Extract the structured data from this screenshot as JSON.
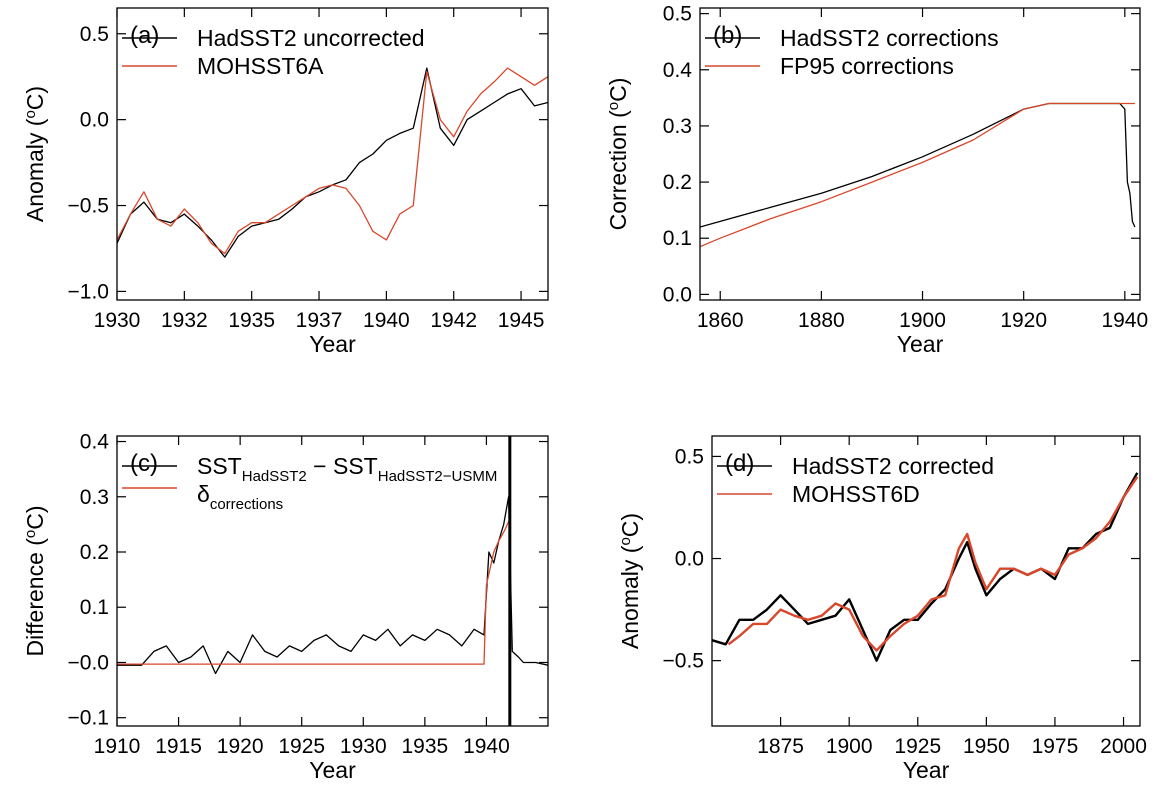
{
  "colors": {
    "black": "#000000",
    "red": "#d9472b",
    "grey": "#8a8a8a"
  },
  "chart_data": [
    {
      "id": "a",
      "type": "line",
      "panel_label": "(a)",
      "xlabel": "Year",
      "ylabel": "Anomaly (",
      "ylabel_sup": "o",
      "ylabel_tail": "C)",
      "xlim": [
        1930,
        1946
      ],
      "ylim": [
        -1.05,
        0.65
      ],
      "xticks": [
        1930,
        1932.5,
        1935,
        1937.5,
        1940,
        1942.5,
        1945
      ],
      "xticklabels": [
        "1930",
        "1932",
        "1935",
        "1937",
        "1940",
        "1942",
        "1945"
      ],
      "yticks": [
        -1.0,
        -0.5,
        0.0,
        0.5
      ],
      "yticklabels": [
        "−1.0",
        "−0.5",
        "0.0",
        "0.5"
      ],
      "legend": [
        "HadSST2 uncorrected",
        "MOHSST6A"
      ],
      "series": [
        {
          "name": "HadSST2 uncorrected",
          "color": "black",
          "x": [
            1930,
            1930.5,
            1931,
            1931.5,
            1932,
            1932.5,
            1933,
            1933.5,
            1934,
            1934.5,
            1935,
            1935.5,
            1936,
            1936.5,
            1937,
            1937.5,
            1938,
            1938.5,
            1939,
            1939.5,
            1940,
            1940.5,
            1941,
            1941.5,
            1942,
            1942.5,
            1943,
            1943.5,
            1944,
            1944.5,
            1945,
            1945.5,
            1946
          ],
          "y": [
            -0.72,
            -0.55,
            -0.48,
            -0.58,
            -0.6,
            -0.55,
            -0.62,
            -0.7,
            -0.8,
            -0.68,
            -0.62,
            -0.6,
            -0.58,
            -0.52,
            -0.45,
            -0.42,
            -0.38,
            -0.35,
            -0.25,
            -0.2,
            -0.12,
            -0.08,
            -0.05,
            0.3,
            -0.05,
            -0.15,
            0.0,
            0.05,
            0.1,
            0.15,
            0.18,
            0.08,
            0.1
          ]
        },
        {
          "name": "MOHSST6A",
          "color": "red",
          "x": [
            1930,
            1930.5,
            1931,
            1931.5,
            1932,
            1932.5,
            1933,
            1933.5,
            1934,
            1934.5,
            1935,
            1935.5,
            1936,
            1936.5,
            1937,
            1937.5,
            1938,
            1938.5,
            1939,
            1939.5,
            1940,
            1940.5,
            1941,
            1941.5,
            1942,
            1942.5,
            1943,
            1943.5,
            1944,
            1944.5,
            1945,
            1945.5,
            1946
          ],
          "y": [
            -0.7,
            -0.55,
            -0.42,
            -0.58,
            -0.62,
            -0.52,
            -0.6,
            -0.72,
            -0.78,
            -0.65,
            -0.6,
            -0.6,
            -0.55,
            -0.5,
            -0.45,
            -0.4,
            -0.38,
            -0.4,
            -0.5,
            -0.65,
            -0.7,
            -0.55,
            -0.5,
            0.28,
            0.0,
            -0.1,
            0.05,
            0.15,
            0.22,
            0.3,
            0.25,
            0.2,
            0.25
          ]
        }
      ]
    },
    {
      "id": "b",
      "type": "line",
      "panel_label": "(b)",
      "xlabel": "Year",
      "ylabel": "Correction (",
      "ylabel_sup": "o",
      "ylabel_tail": "C)",
      "xlim": [
        1856,
        1943
      ],
      "ylim": [
        -0.01,
        0.51
      ],
      "xticks": [
        1860,
        1880,
        1900,
        1920,
        1940
      ],
      "xticklabels": [
        "1860",
        "1880",
        "1900",
        "1920",
        "1940"
      ],
      "yticks": [
        0.0,
        0.1,
        0.2,
        0.3,
        0.4,
        0.5
      ],
      "yticklabels": [
        "0.0",
        "0.1",
        "0.2",
        "0.3",
        "0.4",
        "0.5"
      ],
      "legend": [
        "HadSST2 corrections",
        "FP95 corrections"
      ],
      "series": [
        {
          "name": "HadSST2 corrections",
          "color": "black",
          "x": [
            1856,
            1860,
            1870,
            1880,
            1890,
            1900,
            1910,
            1920,
            1925,
            1930,
            1935,
            1939,
            1940,
            1940.5,
            1941,
            1941.5,
            1942
          ],
          "y": [
            0.12,
            0.13,
            0.155,
            0.18,
            0.21,
            0.245,
            0.285,
            0.33,
            0.34,
            0.34,
            0.34,
            0.34,
            0.33,
            0.2,
            0.18,
            0.13,
            0.12
          ]
        },
        {
          "name": "FP95 corrections",
          "color": "red",
          "x": [
            1856,
            1860,
            1870,
            1880,
            1890,
            1900,
            1910,
            1920,
            1925,
            1930,
            1935,
            1940,
            1942
          ],
          "y": [
            0.085,
            0.1,
            0.135,
            0.165,
            0.2,
            0.235,
            0.275,
            0.33,
            0.34,
            0.34,
            0.34,
            0.34,
            0.34
          ]
        }
      ]
    },
    {
      "id": "c",
      "type": "line",
      "panel_label": "(c)",
      "xlabel": "Year",
      "ylabel": "Difference (",
      "ylabel_sup": "o",
      "ylabel_tail": "C)",
      "xlim": [
        1910,
        1945
      ],
      "ylim": [
        -0.115,
        0.41
      ],
      "xticks": [
        1910,
        1915,
        1920,
        1925,
        1930,
        1935,
        1940
      ],
      "xticklabels": [
        "1910",
        "1915",
        "1920",
        "1925",
        "1930",
        "1935",
        "1940"
      ],
      "yticks": [
        -0.1,
        0.0,
        0.1,
        0.2,
        0.3,
        0.4
      ],
      "yticklabels": [
        "−0.1",
        "−0.0",
        "0.1",
        "0.2",
        "0.3",
        "0.4"
      ],
      "legend_1_main": "SST",
      "legend_1_sub1": "HadSST2",
      "legend_1_mid": " − SST",
      "legend_1_sub2": "HadSST2−USMM",
      "legend_2_main": "δ",
      "legend_2_sub": "corrections",
      "vline_x": 1941.9,
      "series": [
        {
          "name": "SST HadSST2 − SST HadSST2−USMM",
          "color": "black",
          "x": [
            1910,
            1912,
            1913,
            1914,
            1915,
            1916,
            1917,
            1918,
            1919,
            1920,
            1921,
            1922,
            1923,
            1924,
            1925,
            1926,
            1927,
            1928,
            1929,
            1930,
            1931,
            1932,
            1933,
            1934,
            1935,
            1936,
            1937,
            1938,
            1939,
            1939.8,
            1940.2,
            1940.6,
            1941,
            1941.4,
            1941.8,
            1942.1,
            1942.6,
            1943,
            1944,
            1945
          ],
          "y": [
            -0.005,
            -0.005,
            0.02,
            0.03,
            0.0,
            0.01,
            0.03,
            -0.02,
            0.02,
            0.0,
            0.05,
            0.02,
            0.01,
            0.03,
            0.02,
            0.04,
            0.05,
            0.03,
            0.02,
            0.05,
            0.04,
            0.06,
            0.03,
            0.05,
            0.04,
            0.06,
            0.05,
            0.03,
            0.06,
            0.05,
            0.2,
            0.18,
            0.22,
            0.25,
            0.3,
            0.02,
            0.01,
            0.0,
            0.0,
            -0.005
          ]
        },
        {
          "name": "δ corrections",
          "color": "red",
          "x": [
            1910,
            1915,
            1920,
            1925,
            1930,
            1935,
            1939.8,
            1940,
            1940.6,
            1941,
            1941.5,
            1941.9
          ],
          "y": [
            -0.003,
            -0.003,
            -0.003,
            -0.003,
            -0.003,
            -0.003,
            -0.003,
            0.14,
            0.2,
            0.22,
            0.24,
            0.26
          ]
        }
      ]
    },
    {
      "id": "d",
      "type": "line",
      "panel_label": "(d)",
      "xlabel": "Year",
      "ylabel": "Anomaly (",
      "ylabel_sup": "o",
      "ylabel_tail": "C)",
      "xlim": [
        1850,
        2006
      ],
      "ylim": [
        -0.82,
        0.6
      ],
      "xticks": [
        1875,
        1900,
        1925,
        1950,
        1975,
        2000
      ],
      "xticklabels": [
        "1875",
        "1900",
        "1925",
        "1950",
        "1975",
        "2000"
      ],
      "yticks": [
        -0.5,
        0.0,
        0.5
      ],
      "yticklabels": [
        "−0.5",
        "0.0",
        "0.5"
      ],
      "legend": [
        "HadSST2 corrected",
        "MOHSST6D"
      ],
      "series": [
        {
          "name": "HadSST2 corrected (smoothed)",
          "color": "black",
          "x": [
            1850,
            1855,
            1860,
            1865,
            1870,
            1875,
            1880,
            1885,
            1890,
            1895,
            1900,
            1905,
            1910,
            1915,
            1920,
            1925,
            1930,
            1935,
            1940,
            1943,
            1946,
            1950,
            1955,
            1960,
            1965,
            1970,
            1975,
            1980,
            1985,
            1990,
            1995,
            2000,
            2005
          ],
          "y": [
            -0.4,
            -0.42,
            -0.3,
            -0.3,
            -0.25,
            -0.18,
            -0.25,
            -0.32,
            -0.3,
            -0.28,
            -0.2,
            -0.35,
            -0.5,
            -0.35,
            -0.3,
            -0.3,
            -0.22,
            -0.15,
            0.0,
            0.08,
            -0.05,
            -0.18,
            -0.1,
            -0.05,
            -0.08,
            -0.05,
            -0.1,
            0.05,
            0.05,
            0.12,
            0.15,
            0.3,
            0.42
          ]
        },
        {
          "name": "MOHSST6D",
          "color": "red",
          "x": [
            1856,
            1860,
            1865,
            1870,
            1875,
            1880,
            1885,
            1890,
            1895,
            1900,
            1905,
            1910,
            1915,
            1920,
            1925,
            1930,
            1935,
            1940,
            1943,
            1946,
            1950,
            1955,
            1960,
            1965,
            1970,
            1975,
            1980,
            1985,
            1990,
            1995,
            2000,
            2005
          ],
          "y": [
            -0.42,
            -0.38,
            -0.32,
            -0.32,
            -0.25,
            -0.28,
            -0.3,
            -0.28,
            -0.22,
            -0.25,
            -0.38,
            -0.45,
            -0.38,
            -0.32,
            -0.28,
            -0.2,
            -0.18,
            0.05,
            0.12,
            -0.02,
            -0.15,
            -0.05,
            -0.05,
            -0.08,
            -0.05,
            -0.08,
            0.02,
            0.05,
            0.1,
            0.18,
            0.3,
            0.4
          ]
        }
      ]
    }
  ]
}
